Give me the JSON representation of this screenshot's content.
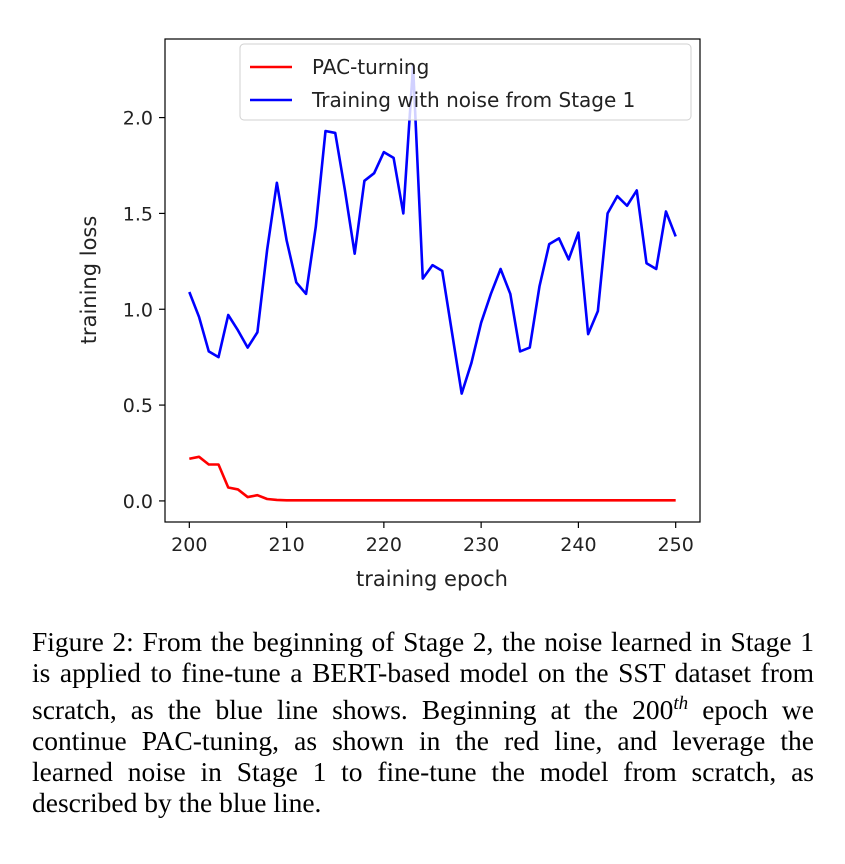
{
  "chart_data": {
    "type": "line",
    "xlabel": "training epoch",
    "ylabel": "training loss",
    "xlim": [
      197.5,
      252.5
    ],
    "ylim": [
      -0.11,
      2.41
    ],
    "xticks": [
      200,
      210,
      220,
      230,
      240,
      250
    ],
    "xtick_labels": [
      "200",
      "210",
      "220",
      "230",
      "240",
      "250"
    ],
    "yticks": [
      0.0,
      0.5,
      1.0,
      1.5,
      2.0
    ],
    "ytick_labels": [
      "0.0",
      "0.5",
      "1.0",
      "1.5",
      "2.0"
    ],
    "grid": false,
    "legend_position": "top-right",
    "x": [
      200,
      201,
      202,
      203,
      204,
      205,
      206,
      207,
      208,
      209,
      210,
      211,
      212,
      213,
      214,
      215,
      216,
      217,
      218,
      219,
      220,
      221,
      222,
      223,
      224,
      225,
      226,
      227,
      228,
      229,
      230,
      231,
      232,
      233,
      234,
      235,
      236,
      237,
      238,
      239,
      240,
      241,
      242,
      243,
      244,
      245,
      246,
      247,
      248,
      249,
      250
    ],
    "series": [
      {
        "name": "PAC-turning",
        "color": "#ff0000",
        "values": [
          0.22,
          0.23,
          0.19,
          0.19,
          0.07,
          0.06,
          0.02,
          0.03,
          0.01,
          0.005,
          0.003,
          0.003,
          0.003,
          0.003,
          0.003,
          0.003,
          0.003,
          0.003,
          0.003,
          0.003,
          0.003,
          0.003,
          0.003,
          0.003,
          0.003,
          0.003,
          0.003,
          0.003,
          0.003,
          0.003,
          0.003,
          0.003,
          0.003,
          0.003,
          0.003,
          0.003,
          0.003,
          0.003,
          0.003,
          0.003,
          0.003,
          0.003,
          0.003,
          0.003,
          0.003,
          0.003,
          0.003,
          0.003,
          0.003,
          0.003,
          0.003
        ]
      },
      {
        "name": "Training with noise from Stage 1",
        "color": "#0000ff",
        "values": [
          1.09,
          0.96,
          0.78,
          0.75,
          0.97,
          0.89,
          0.8,
          0.88,
          1.31,
          1.66,
          1.36,
          1.14,
          1.08,
          1.43,
          1.93,
          1.92,
          1.62,
          1.29,
          1.67,
          1.71,
          1.82,
          1.79,
          1.5,
          2.27,
          1.16,
          1.23,
          1.2,
          0.88,
          0.56,
          0.72,
          0.93,
          1.08,
          1.21,
          1.08,
          0.78,
          0.8,
          1.12,
          1.34,
          1.37,
          1.26,
          1.4,
          0.87,
          0.99,
          1.5,
          1.59,
          1.54,
          1.62,
          1.24,
          1.21,
          1.51,
          1.38
        ]
      }
    ]
  },
  "caption": {
    "label": "Figure 2:",
    "text_before_superscript": "From the beginning of Stage 2, the noise learned in Stage 1 is applied to fine-tune a BERT-based model on the SST dataset from scratch, as the blue line shows. Beginning at the 200",
    "superscript": "th",
    "text_after_superscript": "epoch we continue PAC-tuning, as shown in the red line, and leverage the learned noise in Stage 1 to fine-tune the model from scratch, as described by the blue line."
  }
}
